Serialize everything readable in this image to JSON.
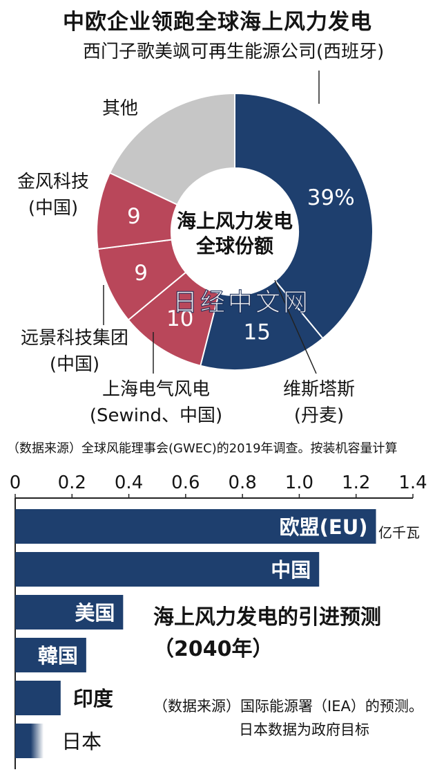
{
  "chart_data": [
    {
      "type": "pie",
      "title": "中欧企业领跑全球海上风力发电",
      "center_label": [
        "海上风力发电",
        "全球份额"
      ],
      "slices": [
        {
          "label": "西门子歌美飒可再生能源公司(西班牙)",
          "value": 39,
          "display": "39%",
          "color": "#1e3f6e"
        },
        {
          "label": "维斯塔斯(丹麦)",
          "value": 15,
          "display": "15",
          "color": "#1e3f6e"
        },
        {
          "label": "上海电气风电(Sewind、中国)",
          "value": 10,
          "display": "10",
          "color": "#b9475a"
        },
        {
          "label": "远景科技集团(中国)",
          "value": 9,
          "display": "9",
          "color": "#b9475a"
        },
        {
          "label": "金风科技(中国)",
          "value": 9,
          "display": "9",
          "color": "#b9475a"
        },
        {
          "label": "其他",
          "value": 18,
          "display": "",
          "color": "#c6c6c6"
        }
      ],
      "source": "（数据来源）全球风能理事会(GWEC)的2019年调查。按装机容量计算"
    },
    {
      "type": "bar",
      "orientation": "horizontal",
      "title": "海上风力发电的引进预测",
      "subtitle": "（2040年）",
      "unit": "亿千瓦",
      "xlim": [
        0,
        1.4
      ],
      "ticks": [
        "0",
        "0.2",
        "0.4",
        "0.6",
        "0.8",
        "1.0",
        "1.2",
        "1.4"
      ],
      "categories": [
        "欧盟(EU)",
        "中国",
        "美国",
        "韓国",
        "印度",
        "日本"
      ],
      "values": [
        1.27,
        1.07,
        0.38,
        0.25,
        0.16,
        0.1
      ],
      "color": "#1e3f6e",
      "source": [
        "（数据来源）国际能源署（IEA）的预测。",
        "日本数据为政府目标"
      ]
    }
  ],
  "watermark": "日经中文网"
}
